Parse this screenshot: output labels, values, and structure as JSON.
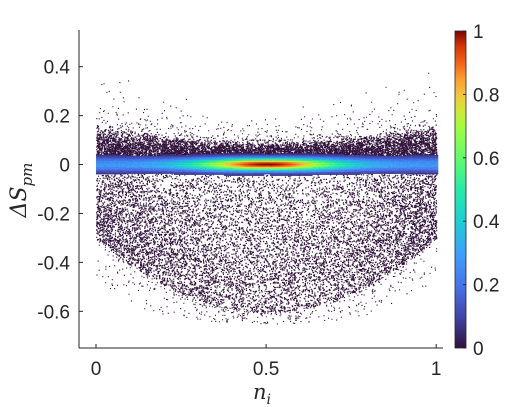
{
  "chart_data": {
    "type": "heatmap",
    "title": "",
    "xlabel": "n_i",
    "ylabel": "ΔS_pm",
    "x_ticks": [
      {
        "value": 0,
        "label": "0"
      },
      {
        "value": 0.5,
        "label": "0.5"
      },
      {
        "value": 1,
        "label": "1"
      }
    ],
    "y_ticks": [
      {
        "value": 0.4,
        "label": "0.4"
      },
      {
        "value": 0.2,
        "label": "0.2"
      },
      {
        "value": 0,
        "label": "0"
      },
      {
        "value": -0.2,
        "label": "-0.2"
      },
      {
        "value": -0.4,
        "label": "-0.4"
      },
      {
        "value": -0.6,
        "label": "-0.6"
      }
    ],
    "xlim": [
      -0.05,
      1.02
    ],
    "ylim": [
      -0.75,
      0.55
    ],
    "colorbar": {
      "colormap": "turbo",
      "range": [
        0,
        1
      ],
      "ticks": [
        {
          "value": 0,
          "label": "0"
        },
        {
          "value": 0.2,
          "label": "0.2"
        },
        {
          "value": 0.4,
          "label": "0.4"
        },
        {
          "value": 0.6,
          "label": "0.6"
        },
        {
          "value": 0.8,
          "label": "0.8"
        },
        {
          "value": 1,
          "label": "1"
        }
      ]
    },
    "density_model": {
      "x_range": [
        0,
        1
      ],
      "core": {
        "center_y": 0,
        "peak_x": 0.5,
        "sigma_y": 0.018
      },
      "upper_edge": {
        "at_x_0": 0.18,
        "at_x_0.5": 0.1,
        "at_x_1": 0.18
      },
      "lower_edge": {
        "at_x_0": -0.3,
        "at_x_0.5": -0.6,
        "at_x_1": -0.3
      },
      "outliers_y_max": 0.47,
      "outliers_y_min": -0.65
    },
    "grid": false,
    "background_color": "#ffffff",
    "low_density_color": "#30123b",
    "high_density_color": "#7a0403"
  }
}
